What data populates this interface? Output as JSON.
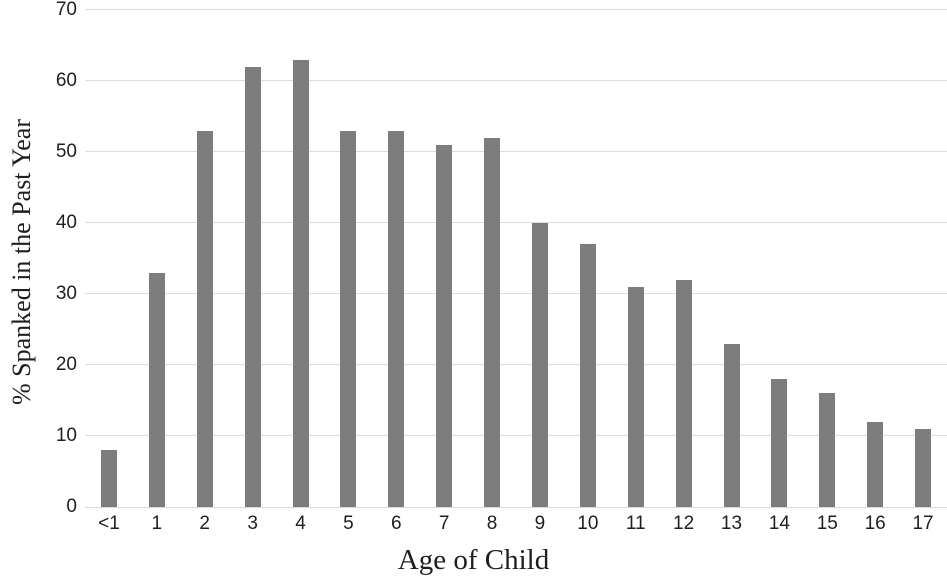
{
  "chart_data": {
    "type": "bar",
    "title": "",
    "xlabel": "Age of Child",
    "ylabel": "% Spanked in the Past Year",
    "categories": [
      "<1",
      "1",
      "2",
      "3",
      "4",
      "5",
      "6",
      "7",
      "8",
      "9",
      "10",
      "11",
      "12",
      "13",
      "14",
      "15",
      "16",
      "17"
    ],
    "values": [
      8,
      33,
      53,
      62,
      63,
      53,
      53,
      51,
      52,
      40,
      37,
      31,
      32,
      23,
      18,
      16,
      12,
      11
    ],
    "ylim": [
      0,
      70
    ],
    "yticks": [
      0,
      10,
      20,
      30,
      40,
      50,
      60,
      70
    ],
    "grid": true,
    "legend": false,
    "bar_color": "#7d7d7f",
    "gridline_color": "#dcdcdc",
    "axis_line_color": "#d9d9d9",
    "text_color": "#1f1f1f"
  }
}
